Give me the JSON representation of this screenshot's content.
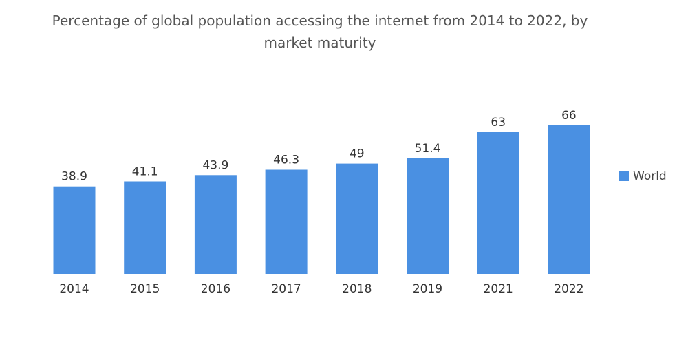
{
  "title": "Percentage of global population accessing the internet from 2014 to 2022, by market maturity",
  "legend": {
    "label": "World",
    "color": "#4a90e2"
  },
  "chart_data": {
    "type": "bar",
    "title": "Percentage of global population accessing the internet from 2014 to 2022, by market maturity",
    "categories": [
      "2014",
      "2015",
      "2016",
      "2017",
      "2018",
      "2019",
      "2021",
      "2022"
    ],
    "series": [
      {
        "name": "World",
        "values": [
          38.9,
          41.1,
          43.9,
          46.3,
          49,
          51.4,
          63,
          66
        ],
        "color": "#4a90e2"
      }
    ],
    "data_labels": [
      "38.9",
      "41.1",
      "43.9",
      "46.3",
      "49",
      "51.4",
      "63",
      "66"
    ],
    "xlabel": "",
    "ylabel": "",
    "ylim": [
      0,
      66
    ],
    "legend_position": "right"
  }
}
